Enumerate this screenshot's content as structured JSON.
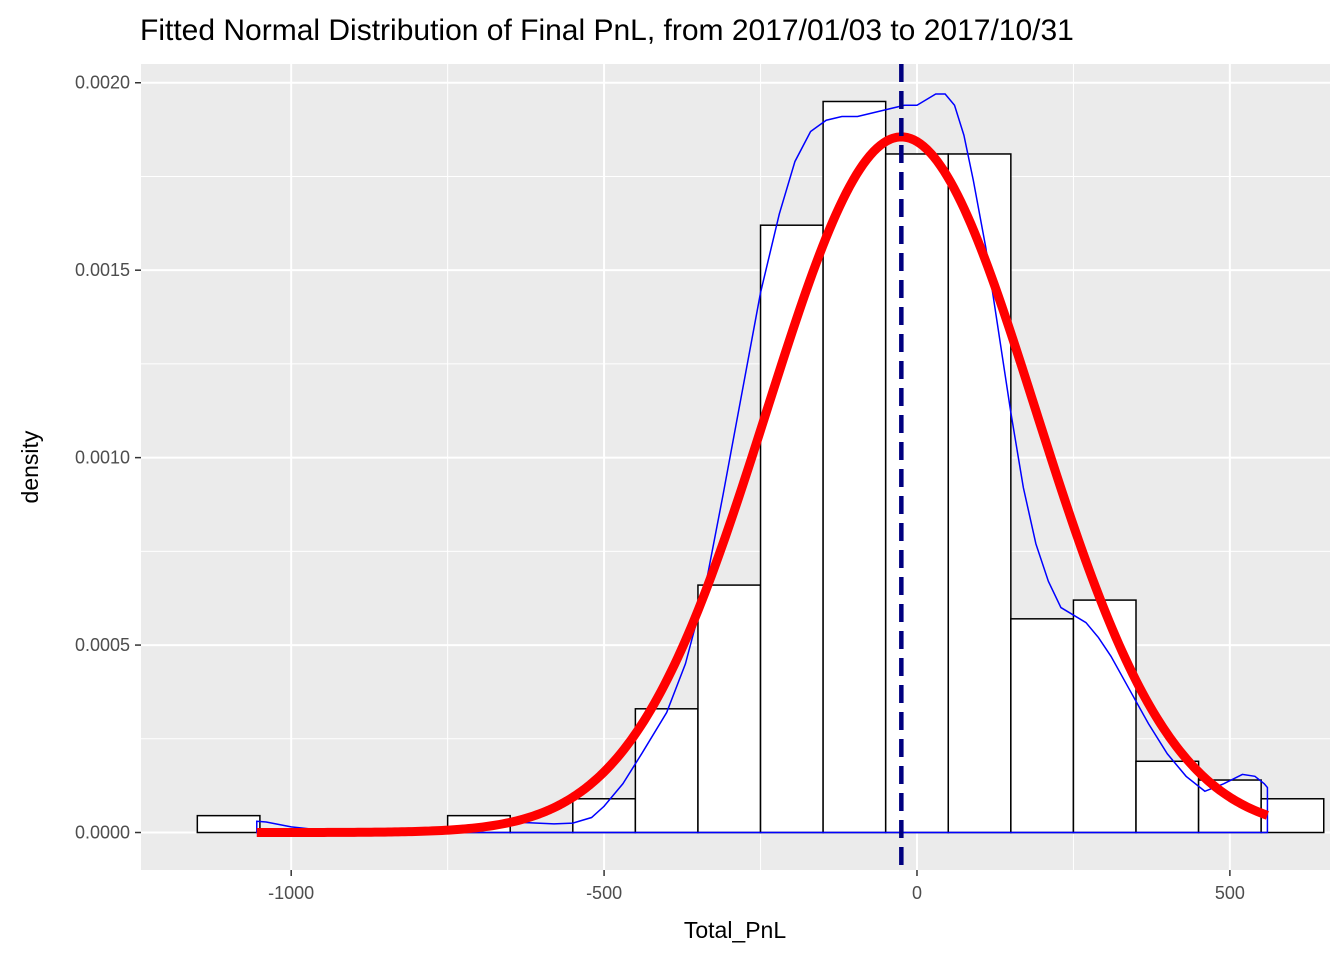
{
  "chart_data": {
    "type": "histogram",
    "title": "Fitted Normal Distribution of Final PnL, from 2017/01/03 to 2017/10/31",
    "xlabel": "Total_PnL",
    "ylabel": "density",
    "xlim": [
      -1240,
      660
    ],
    "ylim": [
      -0.0001,
      0.00205
    ],
    "x_ticks": [
      -1000,
      -500,
      0,
      500
    ],
    "x_tick_labels": [
      "-1000",
      "-500",
      "0",
      "500"
    ],
    "y_ticks": [
      0,
      0.0005,
      0.001,
      0.0015,
      0.002
    ],
    "y_tick_labels": [
      "0.0000",
      "0.0005",
      "0.0010",
      "0.0015",
      "0.0020"
    ],
    "grid": true,
    "legend": "none",
    "histogram": {
      "bin_width": 100,
      "bins": [
        {
          "x0": -1150,
          "x1": -1050,
          "density": 4.5e-05
        },
        {
          "x0": -1050,
          "x1": -950,
          "density": 0
        },
        {
          "x0": -950,
          "x1": -850,
          "density": 0
        },
        {
          "x0": -850,
          "x1": -750,
          "density": 0
        },
        {
          "x0": -750,
          "x1": -650,
          "density": 4.5e-05
        },
        {
          "x0": -650,
          "x1": -550,
          "density": 0
        },
        {
          "x0": -550,
          "x1": -450,
          "density": 9e-05
        },
        {
          "x0": -450,
          "x1": -350,
          "density": 0.00033
        },
        {
          "x0": -350,
          "x1": -250,
          "density": 0.00066
        },
        {
          "x0": -250,
          "x1": -150,
          "density": 0.00162
        },
        {
          "x0": -150,
          "x1": -50,
          "density": 0.00195
        },
        {
          "x0": -50,
          "x1": 50,
          "density": 0.00181
        },
        {
          "x0": 50,
          "x1": 150,
          "density": 0.00181
        },
        {
          "x0": 150,
          "x1": 250,
          "density": 0.00057
        },
        {
          "x0": 250,
          "x1": 350,
          "density": 0.00062
        },
        {
          "x0": 350,
          "x1": 450,
          "density": 0.00019
        },
        {
          "x0": 450,
          "x1": 550,
          "density": 0.00014
        },
        {
          "x0": 550,
          "x1": 650,
          "density": 9e-05
        }
      ],
      "fill": "#ffffff",
      "outline": "#000000"
    },
    "normal_fit": {
      "mean": -25,
      "sd": 215,
      "x_range": [
        -1055,
        560
      ],
      "color": "#ff0000"
    },
    "kernel_density": {
      "color": "#0000ff",
      "x": [
        -1055,
        -1040,
        -1000,
        -950,
        -900,
        -850,
        -800,
        -750,
        -700,
        -660,
        -620,
        -580,
        -550,
        -520,
        -500,
        -470,
        -440,
        -400,
        -370,
        -340,
        -310,
        -280,
        -250,
        -220,
        -195,
        -170,
        -145,
        -120,
        -95,
        -70,
        -45,
        -20,
        0,
        10,
        20,
        30,
        45,
        60,
        75,
        90,
        110,
        130,
        150,
        170,
        190,
        210,
        230,
        250,
        270,
        290,
        310,
        340,
        370,
        400,
        430,
        460,
        490,
        520,
        540,
        555,
        560
      ],
      "y": [
        3e-05,
        2.8e-05,
        1.5e-05,
        6e-06,
        4e-06,
        5e-06,
        9e-06,
        1.5e-05,
        2.2e-05,
        2.8e-05,
        2.6e-05,
        2.3e-05,
        2.5e-05,
        4e-05,
        7e-05,
        0.00013,
        0.00021,
        0.00032,
        0.00045,
        0.00064,
        0.0009,
        0.00117,
        0.00144,
        0.00165,
        0.00179,
        0.00187,
        0.0019,
        0.00191,
        0.00191,
        0.00192,
        0.00193,
        0.00194,
        0.00194,
        0.00195,
        0.00196,
        0.00197,
        0.00197,
        0.00194,
        0.00186,
        0.00174,
        0.00156,
        0.00134,
        0.00112,
        0.00092,
        0.00077,
        0.00067,
        0.0006,
        0.00058,
        0.00056,
        0.00052,
        0.00047,
        0.00038,
        0.00029,
        0.00021,
        0.00015,
        0.00011,
        0.00013,
        0.000155,
        0.00015,
        0.00013,
        0.00012
      ]
    },
    "mean_line": {
      "x": -25,
      "color": "#00007f",
      "style": "dashed"
    }
  }
}
